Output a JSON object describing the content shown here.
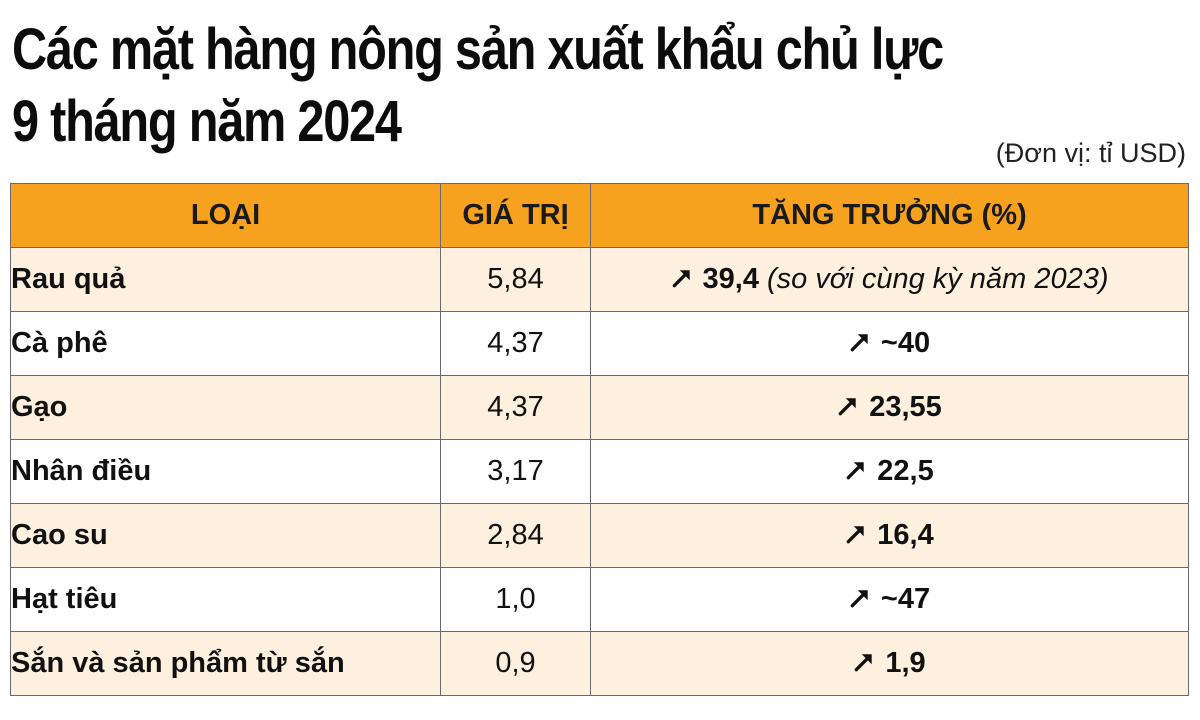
{
  "colors": {
    "header_bg": "#f6a21f",
    "row_alt_bg": "#fdf0de",
    "row_bg": "#ffffff",
    "border": "#6a6a6a",
    "arrow": "#111111"
  },
  "chart_data": {
    "type": "table",
    "title_lines": [
      "Các mặt hàng nông sản xuất khẩu chủ lực",
      "9 tháng năm 2024"
    ],
    "unit": "(Đơn vị: tỉ USD)",
    "columns": [
      "LOẠI",
      "GIÁ TRỊ",
      "TĂNG TRƯỞNG (%)"
    ],
    "rows": [
      {
        "name": "Rau quả",
        "value": "5,84",
        "growth": "39,4",
        "note": "(so với cùng kỳ năm 2023)"
      },
      {
        "name": "Cà phê",
        "value": "4,37",
        "growth": "~40"
      },
      {
        "name": "Gạo",
        "value": "4,37",
        "growth": "23,55"
      },
      {
        "name": "Nhân điều",
        "value": "3,17",
        "growth": "22,5"
      },
      {
        "name": "Cao su",
        "value": "2,84",
        "growth": "16,4"
      },
      {
        "name": "Hạt tiêu",
        "value": "1,0",
        "growth": "~47"
      },
      {
        "name": "Sắn và sản phẩm từ sắn",
        "value": "0,9",
        "growth": "1,9"
      }
    ],
    "growth_icon": "up-right-arrow-icon"
  }
}
